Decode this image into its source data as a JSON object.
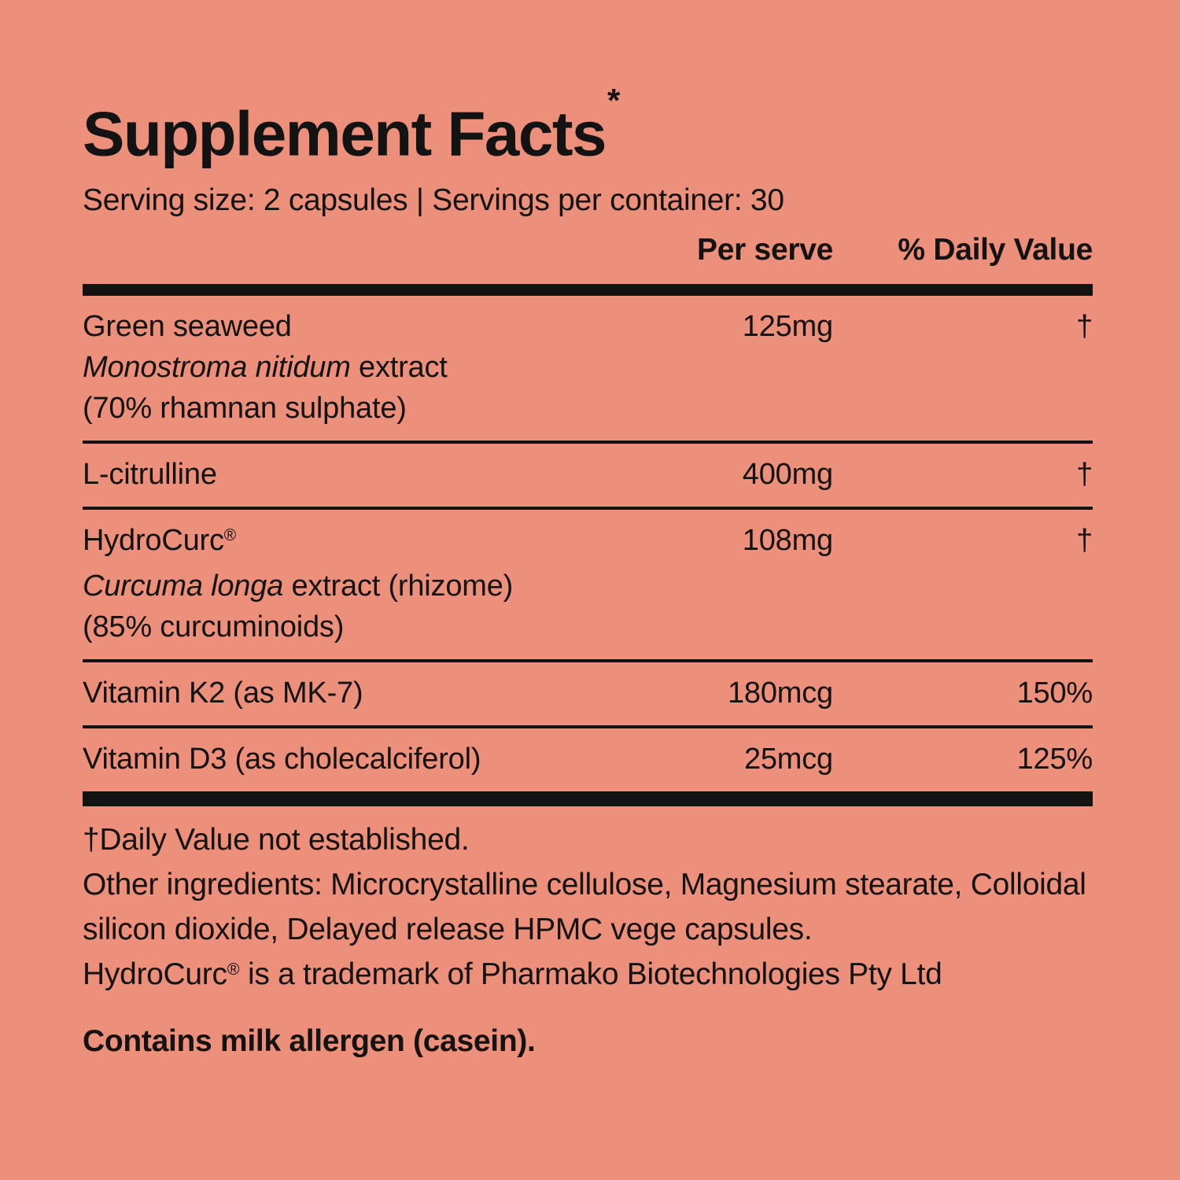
{
  "label": {
    "title": "Supplement Facts",
    "title_asterisk": "*",
    "serving_line": "Serving size: 2 capsules | Servings per container: 30",
    "columns": {
      "per_serve": "Per serve",
      "daily_value": "% Daily Value"
    },
    "rows": [
      {
        "name": "Green seaweed",
        "sub_italic": "Monostroma nitidum",
        "sub_regular": " extract",
        "sub2": "(70% rhamnan sulphate)",
        "amount": "125mg",
        "dv": "†"
      },
      {
        "name": "L-citrulline",
        "amount": "400mg",
        "dv": "†"
      },
      {
        "name": "HydroCurc",
        "name_sup": "®",
        "sub_italic": "Curcuma longa",
        "sub_regular": " extract (rhizome)",
        "sub2": "(85% curcuminoids)",
        "amount": "108mg",
        "dv": "†"
      },
      {
        "name": "Vitamin K2 (as MK-7)",
        "amount": "180mcg",
        "dv": "150%"
      },
      {
        "name": "Vitamin D3 (as cholecalciferol)",
        "amount": "25mcg",
        "dv": "125%"
      }
    ],
    "footnotes": {
      "dv_note": "†Daily Value not established.",
      "other_ingredients": "Other ingredients: Microcrystalline cellulose, Magnesium stearate, Colloidal silicon dioxide, Delayed release HPMC vege capsules.",
      "trademark_pre": "HydroCurc",
      "trademark_sup": "®",
      "trademark_post": " is a trademark of Pharmako Biotechnologies Pty Ltd",
      "allergen": "Contains milk allergen (casein)."
    },
    "colors": {
      "background": "#EC8F7B",
      "text": "#131313"
    }
  }
}
